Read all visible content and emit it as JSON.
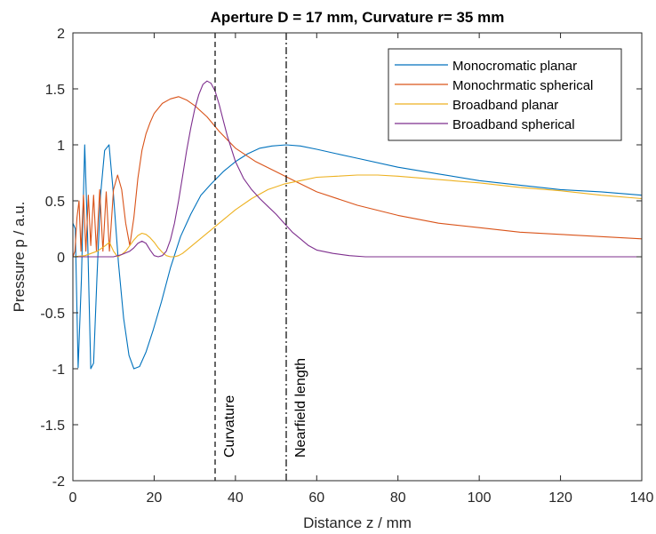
{
  "chart_data": {
    "type": "line",
    "title": "Aperture D = 17 mm, Curvature r= 35 mm",
    "xlabel": "Distance z / mm",
    "ylabel": "Pressure p / a.u.",
    "xlim": [
      0,
      140
    ],
    "ylim": [
      -2,
      2
    ],
    "xticks": [
      0,
      20,
      40,
      60,
      80,
      100,
      120,
      140
    ],
    "yticks": [
      -2,
      -1.5,
      -1,
      -0.5,
      0,
      0.5,
      1,
      1.5,
      2
    ],
    "grid": false,
    "legend_position": "top-right",
    "colors": {
      "monochromatic_planar": "#0072BD",
      "monochromatic_spherical": "#D95319",
      "broadband_planar": "#EDB120",
      "broadband_spherical": "#7E2F8E",
      "axis": "#262626",
      "marker_line": "#000000"
    },
    "series": [
      {
        "name": "Monocromatic planar",
        "color_key": "monochromatic_planar",
        "x": [
          0,
          0.6,
          1.3,
          2.1,
          2.9,
          3.6,
          4.4,
          5.1,
          5.9,
          6.8,
          7.8,
          8.9,
          10.0,
          11.2,
          12.5,
          13.8,
          15.0,
          16.4,
          18.0,
          19.8,
          21.8,
          24.0,
          26.5,
          29.0,
          31.5,
          34.0,
          37.0,
          40.0,
          43.0,
          46.0,
          49.0,
          52.5,
          56.0,
          60.0,
          65.0,
          70.0,
          80.0,
          90.0,
          100.0,
          110.0,
          120.0,
          130.0,
          140.0
        ],
        "y": [
          0.3,
          0.25,
          -0.99,
          -0.2,
          1.0,
          0.2,
          -1.0,
          -0.95,
          -0.2,
          0.55,
          0.95,
          1.0,
          0.55,
          -0.05,
          -0.55,
          -0.88,
          -1.0,
          -0.98,
          -0.85,
          -0.65,
          -0.4,
          -0.1,
          0.18,
          0.38,
          0.55,
          0.65,
          0.76,
          0.85,
          0.92,
          0.97,
          0.99,
          1.0,
          0.99,
          0.96,
          0.92,
          0.88,
          0.8,
          0.74,
          0.68,
          0.64,
          0.6,
          0.58,
          0.55
        ]
      },
      {
        "name": "Monochrmatic spherical",
        "color_key": "monochromatic_spherical",
        "x": [
          0,
          0.5,
          1.0,
          1.5,
          2.0,
          2.6,
          3.2,
          3.8,
          4.4,
          5.1,
          5.8,
          6.6,
          7.4,
          8.2,
          9.0,
          10.0,
          11.0,
          12.0,
          13.0,
          14.0,
          15.0,
          16.0,
          17.0,
          18.0,
          19.0,
          20.0,
          22.0,
          24.0,
          26.0,
          28.0,
          30.0,
          33.0,
          36.0,
          40.0,
          45.0,
          50.0,
          55.0,
          60.0,
          70.0,
          80.0,
          90.0,
          100.0,
          110.0,
          120.0,
          130.0,
          140.0
        ],
        "y": [
          0.0,
          0.05,
          0.35,
          0.5,
          0.05,
          0.55,
          0.05,
          0.55,
          0.1,
          0.55,
          0.05,
          0.6,
          0.05,
          0.58,
          0.05,
          0.6,
          0.73,
          0.6,
          0.3,
          0.1,
          0.35,
          0.7,
          0.95,
          1.1,
          1.2,
          1.28,
          1.37,
          1.41,
          1.43,
          1.4,
          1.35,
          1.25,
          1.12,
          0.97,
          0.85,
          0.76,
          0.67,
          0.58,
          0.46,
          0.37,
          0.3,
          0.26,
          0.22,
          0.2,
          0.18,
          0.16
        ]
      },
      {
        "name": "Broadband planar",
        "color_key": "broadband_planar",
        "x": [
          0,
          3.0,
          6.0,
          8.0,
          9.0,
          10.0,
          11.0,
          12.0,
          13.0,
          14.0,
          15.0,
          16.0,
          17.0,
          18.0,
          19.0,
          20.0,
          21.0,
          22.0,
          23.0,
          24.0,
          25.0,
          26.0,
          27.0,
          28.0,
          30.0,
          32.0,
          34.0,
          36.0,
          40.0,
          44.0,
          48.0,
          52.0,
          56.0,
          60.0,
          65.0,
          70.0,
          75.0,
          80.0,
          90.0,
          100.0,
          110.0,
          120.0,
          130.0,
          140.0
        ],
        "y": [
          0.0,
          0.01,
          0.05,
          0.1,
          0.13,
          0.05,
          0.0,
          0.02,
          0.05,
          0.1,
          0.15,
          0.19,
          0.21,
          0.2,
          0.17,
          0.13,
          0.08,
          0.04,
          0.01,
          0.0,
          0.0,
          0.01,
          0.03,
          0.06,
          0.12,
          0.18,
          0.24,
          0.3,
          0.42,
          0.52,
          0.6,
          0.65,
          0.68,
          0.71,
          0.72,
          0.73,
          0.73,
          0.72,
          0.69,
          0.66,
          0.62,
          0.59,
          0.55,
          0.52
        ]
      },
      {
        "name": "Broadband spherical",
        "color_key": "broadband_spherical",
        "x": [
          0,
          4.0,
          8.0,
          10.0,
          12.0,
          14.0,
          15.0,
          16.0,
          17.0,
          18.0,
          19.0,
          20.0,
          21.0,
          22.0,
          23.0,
          24.0,
          25.0,
          26.0,
          27.0,
          28.0,
          29.0,
          30.0,
          31.0,
          32.0,
          33.0,
          34.0,
          35.0,
          36.0,
          37.0,
          38.0,
          40.0,
          42.0,
          44.0,
          46.0,
          48.0,
          50.0,
          52.0,
          54.0,
          56.0,
          58.0,
          60.0,
          64.0,
          68.0,
          72.0,
          80.0,
          100.0,
          120.0,
          140.0
        ],
        "y": [
          0.0,
          0.0,
          0.0,
          0.0,
          0.02,
          0.05,
          0.08,
          0.12,
          0.14,
          0.12,
          0.06,
          0.01,
          0.0,
          0.01,
          0.05,
          0.15,
          0.3,
          0.5,
          0.72,
          0.95,
          1.15,
          1.32,
          1.45,
          1.54,
          1.57,
          1.55,
          1.48,
          1.36,
          1.22,
          1.08,
          0.85,
          0.7,
          0.6,
          0.52,
          0.45,
          0.38,
          0.3,
          0.22,
          0.16,
          0.1,
          0.06,
          0.03,
          0.01,
          0.0,
          0.0,
          0.0,
          0.0,
          0.0
        ]
      }
    ],
    "vertical_lines": [
      {
        "x": 35,
        "label": "Curvature",
        "style": "dashed"
      },
      {
        "x": 52.5,
        "label": "Nearfield length",
        "style": "dashdot"
      }
    ]
  }
}
